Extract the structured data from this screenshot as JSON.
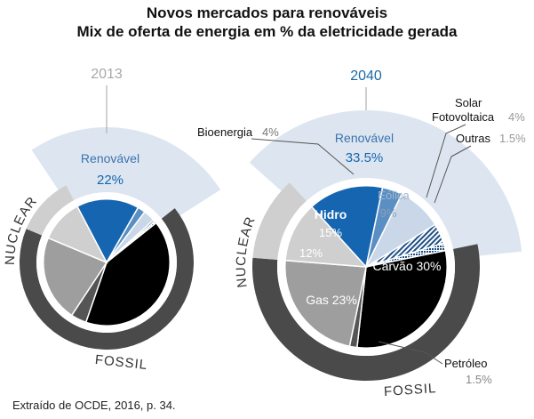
{
  "title": "Novos mercados para renováveis",
  "subtitle": "Mix de oferta de energia em % da eletricidade gerada",
  "source": "Extraído de OCDE, 2016, p. 34.",
  "chart_data": [
    {
      "type": "pie",
      "year": "2013",
      "groups": [
        {
          "label": "Renovável",
          "value": 22,
          "value_label": "22%"
        },
        {
          "label": "NUCLEAR"
        },
        {
          "label": "FOSSIL"
        }
      ],
      "slices": [
        {
          "key": "hidro",
          "value": 16
        },
        {
          "key": "bioenergia",
          "value": 2
        },
        {
          "key": "eolica",
          "value": 3
        },
        {
          "key": "solar",
          "value": 0.5
        },
        {
          "key": "outras",
          "value": 0.5
        },
        {
          "key": "carvao",
          "value": 41
        },
        {
          "key": "petroleo",
          "value": 4
        },
        {
          "key": "gas",
          "value": 22
        },
        {
          "key": "nuclear",
          "value": 11
        }
      ]
    },
    {
      "type": "pie",
      "year": "2040",
      "groups": [
        {
          "label": "Renovável",
          "value": 33.5,
          "value_label": "33.5%"
        },
        {
          "label": "NUCLEAR"
        },
        {
          "label": "FOSSIL"
        }
      ],
      "slices": [
        {
          "key": "hidro",
          "label": "Hidro",
          "value": 15,
          "value_label": "15%"
        },
        {
          "key": "bioenergia",
          "label": "Bioenergia",
          "value": 4,
          "value_label": "4%"
        },
        {
          "key": "eolica",
          "label": "Eólica",
          "value": 9,
          "value_label": "9%"
        },
        {
          "key": "solar",
          "label": "Solar Fotovoltaica",
          "label_lines": [
            "Solar",
            "Fotovoltaica"
          ],
          "value": 4,
          "value_label": "4%"
        },
        {
          "key": "outras",
          "label": "Outras",
          "value": 1.5,
          "value_label": "1.5%"
        },
        {
          "key": "carvao",
          "label": "Carvão",
          "value": 30,
          "value_label": "30%"
        },
        {
          "key": "petroleo",
          "label": "Petróleo",
          "value": 1.5,
          "value_label": "1.5%"
        },
        {
          "key": "gas",
          "label": "Gas",
          "value": 23,
          "value_label": "23%"
        },
        {
          "key": "nuclear",
          "value": 12,
          "value_label": "12%"
        }
      ]
    }
  ],
  "colors": {
    "hidro": "#1565b0",
    "bioenergia": "#5a8fc4",
    "eolica": "#c9d7e8",
    "solar": "#1f4f86",
    "outras": "#1f4f86",
    "carvao": "#000000",
    "petroleo": "#555555",
    "gas": "#9e9e9e",
    "nuclear": "#cfcfcf",
    "band_renovavel": "#dde6f0",
    "ring_fossil": "#4a4a4a",
    "ring_nuclear": "#cfcfcf",
    "ring_renovavel": "#dde6f0",
    "year_2013": "#a8a8a8",
    "year_2040": "#1a6aa8",
    "renovavel_text": "#3a72b0"
  }
}
